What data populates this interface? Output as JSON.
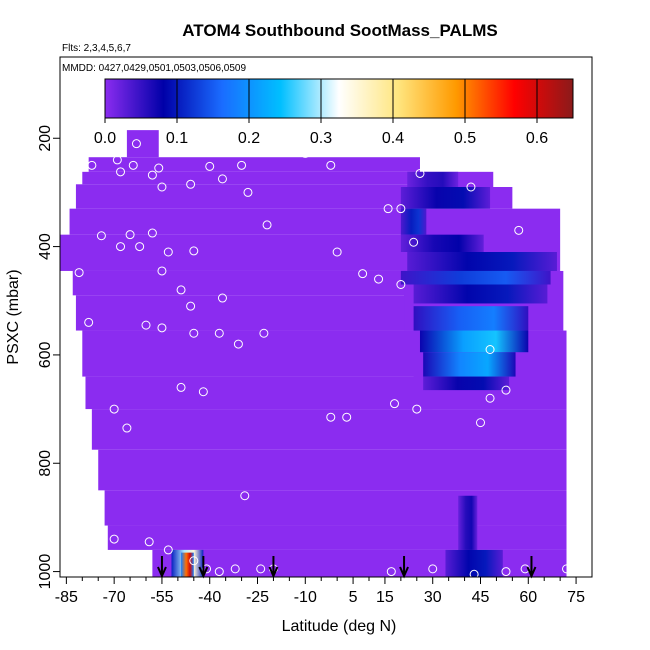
{
  "chart_data": {
    "type": "heatmap",
    "title": "ATOM4 Southbound SootMass_PALMS",
    "subtitle_flights": "Flts: 2,3,4,5,6,7",
    "subtitle_dates": "MMDD: 0427,0429,0501,0503,0506,0509",
    "xlabel": "Latitude (deg N)",
    "ylabel": "PSXC (mbar)",
    "xlim": [
      -87,
      80
    ],
    "ylim": [
      1010,
      50
    ],
    "x_ticks": [
      -85,
      -70,
      -55,
      -40,
      -25,
      -10,
      5,
      15,
      30,
      45,
      60,
      75
    ],
    "x_tick_labels": [
      "-85",
      "-70",
      "-55",
      "-40",
      "-25",
      "-10",
      "5",
      "15",
      "30",
      "45",
      "60",
      "75"
    ],
    "y_ticks": [
      200,
      400,
      600,
      800,
      1000
    ],
    "y_tick_labels": [
      "200",
      "400",
      "600",
      "800",
      "1000"
    ],
    "colorbar": {
      "range": [
        0.0,
        0.65
      ],
      "ticks": [
        0.0,
        0.1,
        0.2,
        0.3,
        0.4,
        0.5,
        0.6
      ],
      "tick_labels": [
        "0.0",
        "0.1",
        "0.2",
        "0.3",
        "0.4",
        "0.5",
        "0.6"
      ],
      "colors": [
        "#8b2cf0",
        "#0000a8",
        "#1a6cff",
        "#00bfff",
        "#ffffff",
        "#ffe680",
        "#ff9a00",
        "#ff0000",
        "#8b1a1a"
      ]
    },
    "background_value": 0.0,
    "background_cells": [
      {
        "x0": -66,
        "x1": -56,
        "p0": 185,
        "p1": 235
      },
      {
        "x0": -78,
        "x1": 26,
        "p0": 235,
        "p1": 262
      },
      {
        "x0": -80,
        "x1": 26,
        "p0": 262,
        "p1": 285
      },
      {
        "x0": -82,
        "x1": 24,
        "p0": 285,
        "p1": 330
      },
      {
        "x0": -84,
        "x1": 22,
        "p0": 330,
        "p1": 378
      },
      {
        "x0": -87,
        "x1": 22,
        "p0": 378,
        "p1": 445
      },
      {
        "x0": -83,
        "x1": 24,
        "p0": 445,
        "p1": 490
      },
      {
        "x0": -82,
        "x1": 26,
        "p0": 490,
        "p1": 555
      },
      {
        "x0": -80,
        "x1": 28,
        "p0": 555,
        "p1": 640
      },
      {
        "x0": -79,
        "x1": 30,
        "p0": 640,
        "p1": 700
      },
      {
        "x0": -77,
        "x1": 72,
        "p0": 700,
        "p1": 775
      },
      {
        "x0": -75,
        "x1": 72,
        "p0": 775,
        "p1": 850
      },
      {
        "x0": -73,
        "x1": 72,
        "p0": 850,
        "p1": 915
      },
      {
        "x0": -72,
        "x1": 72,
        "p0": 915,
        "p1": 960
      },
      {
        "x0": -58,
        "x1": 72,
        "p0": 960,
        "p1": 1010
      },
      {
        "x0": 24,
        "x1": 49,
        "p0": 262,
        "p1": 290
      },
      {
        "x0": 20,
        "x1": 55,
        "p0": 290,
        "p1": 330
      },
      {
        "x0": 20,
        "x1": 70,
        "p0": 330,
        "p1": 445
      },
      {
        "x0": 21,
        "x1": 71,
        "p0": 445,
        "p1": 555
      },
      {
        "x0": 24,
        "x1": 72,
        "p0": 555,
        "p1": 700
      }
    ],
    "highlight_cells": [
      {
        "x0": 22,
        "x1": 38,
        "p0": 262,
        "p1": 290,
        "value": 0.06
      },
      {
        "x0": 20,
        "x1": 48,
        "p0": 290,
        "p1": 330,
        "value": 0.09
      },
      {
        "x0": 20,
        "x1": 28,
        "p0": 330,
        "p1": 378,
        "value": 0.12
      },
      {
        "x0": 20,
        "x1": 46,
        "p0": 378,
        "p1": 410,
        "value": 0.08
      },
      {
        "x0": 22,
        "x1": 69,
        "p0": 410,
        "p1": 445,
        "value": 0.1
      },
      {
        "x0": 20,
        "x1": 67,
        "p0": 445,
        "p1": 470,
        "value": 0.15
      },
      {
        "x0": 24,
        "x1": 66,
        "p0": 470,
        "p1": 505,
        "value": 0.1
      },
      {
        "x0": 24,
        "x1": 60,
        "p0": 510,
        "p1": 555,
        "value": 0.18
      },
      {
        "x0": 26,
        "x1": 60,
        "p0": 555,
        "p1": 595,
        "value": 0.25
      },
      {
        "x0": 27,
        "x1": 56,
        "p0": 595,
        "p1": 640,
        "value": 0.22
      },
      {
        "x0": 27,
        "x1": 54,
        "p0": 640,
        "p1": 665,
        "value": 0.09
      },
      {
        "x0": 38,
        "x1": 44,
        "p0": 860,
        "p1": 960,
        "value": 0.07
      },
      {
        "x0": 34,
        "x1": 52,
        "p0": 960,
        "p1": 1010,
        "value": 0.1
      },
      {
        "x0": -52,
        "x1": -42,
        "p0": 960,
        "p1": 1010,
        "value": 0.35
      },
      {
        "x0": -49,
        "x1": -45,
        "p0": 965,
        "p1": 1010,
        "value": 0.6
      }
    ],
    "sample_points": [
      [
        -63,
        210
      ],
      [
        -44,
        212
      ],
      [
        -77,
        250
      ],
      [
        -69,
        240
      ],
      [
        -64,
        250
      ],
      [
        -56,
        255
      ],
      [
        -40,
        252
      ],
      [
        -30,
        250
      ],
      [
        -68,
        262
      ],
      [
        -58,
        268
      ],
      [
        -46,
        285
      ],
      [
        -36,
        275
      ],
      [
        -28,
        300
      ],
      [
        -10,
        228
      ],
      [
        -2,
        250
      ],
      [
        -55,
        290
      ],
      [
        -74,
        380
      ],
      [
        -65,
        378
      ],
      [
        -58,
        375
      ],
      [
        -68,
        400
      ],
      [
        -62,
        400
      ],
      [
        -53,
        410
      ],
      [
        -45,
        408
      ],
      [
        -22,
        360
      ],
      [
        0,
        410
      ],
      [
        8,
        450
      ],
      [
        13,
        460
      ],
      [
        16,
        330
      ],
      [
        20,
        330
      ],
      [
        24,
        392
      ],
      [
        20,
        470
      ],
      [
        26,
        265
      ],
      [
        42,
        290
      ],
      [
        57,
        370
      ],
      [
        -81,
        448
      ],
      [
        -55,
        445
      ],
      [
        -49,
        480
      ],
      [
        -46,
        510
      ],
      [
        -36,
        495
      ],
      [
        -78,
        540
      ],
      [
        -60,
        545
      ],
      [
        -55,
        550
      ],
      [
        -45,
        560
      ],
      [
        -37,
        560
      ],
      [
        -31,
        580
      ],
      [
        -23,
        560
      ],
      [
        48,
        590
      ],
      [
        -70,
        700
      ],
      [
        -66,
        735
      ],
      [
        -49,
        660
      ],
      [
        -42,
        668
      ],
      [
        -2,
        715
      ],
      [
        3,
        715
      ],
      [
        18,
        690
      ],
      [
        25,
        700
      ],
      [
        45,
        725
      ],
      [
        48,
        680
      ],
      [
        53,
        665
      ],
      [
        -29,
        860
      ],
      [
        -70,
        940
      ],
      [
        -59,
        945
      ],
      [
        -53,
        960
      ],
      [
        -45,
        980
      ],
      [
        -41,
        995
      ],
      [
        -37,
        1000
      ],
      [
        -32,
        995
      ],
      [
        -24,
        995
      ],
      [
        -20,
        995
      ],
      [
        17,
        1000
      ],
      [
        30,
        995
      ],
      [
        43,
        1005
      ],
      [
        53,
        1000
      ],
      [
        59,
        995
      ],
      [
        72,
        995
      ]
    ],
    "arrows_x": [
      -55,
      -42,
      -20,
      21,
      61
    ]
  }
}
